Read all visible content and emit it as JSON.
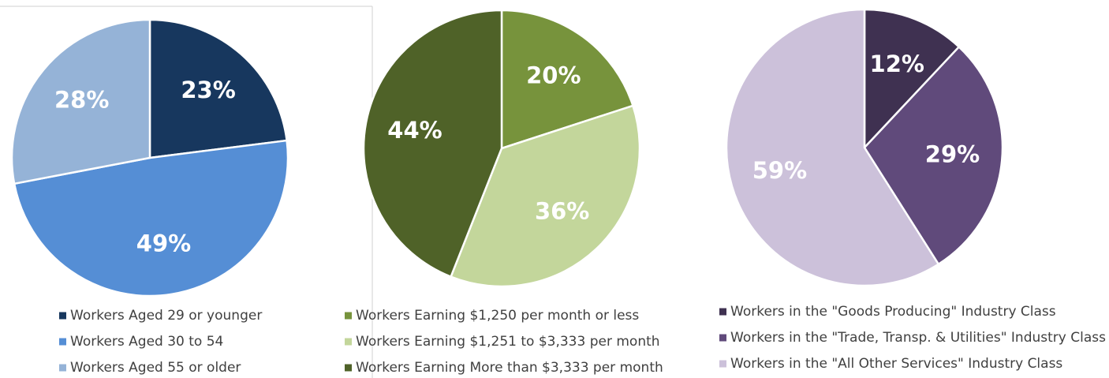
{
  "chart_data": [
    {
      "type": "pie",
      "categories": [
        "Workers Aged 29 or younger",
        "Workers Aged 30 to 54",
        "Workers Aged 55 or older"
      ],
      "values": [
        23,
        49,
        28
      ],
      "value_labels": [
        "23%",
        "49%",
        "28%"
      ],
      "colors": [
        "#17375e",
        "#558ed5",
        "#95b3d7"
      ]
    },
    {
      "type": "pie",
      "categories": [
        "Workers Earning $1,250 per month or less",
        "Workers Earning $1,251 to $3,333 per month",
        "Workers Earning More than $3,333 per month"
      ],
      "values": [
        20,
        36,
        44
      ],
      "value_labels": [
        "20%",
        "36%",
        "44%"
      ],
      "colors": [
        "#77933c",
        "#c3d69b",
        "#4f6228"
      ]
    },
    {
      "type": "pie",
      "categories": [
        "Workers in the \"Goods Producing\" Industry Class",
        "Workers in the \"Trade, Transp. & Utilities\" Industry Class",
        "Workers in the \"All Other Services\" Industry Class"
      ],
      "values": [
        12,
        29,
        59
      ],
      "value_labels": [
        "12%",
        "29%",
        "59%"
      ],
      "colors": [
        "#3f3151",
        "#604a7b",
        "#ccc1da"
      ]
    }
  ]
}
